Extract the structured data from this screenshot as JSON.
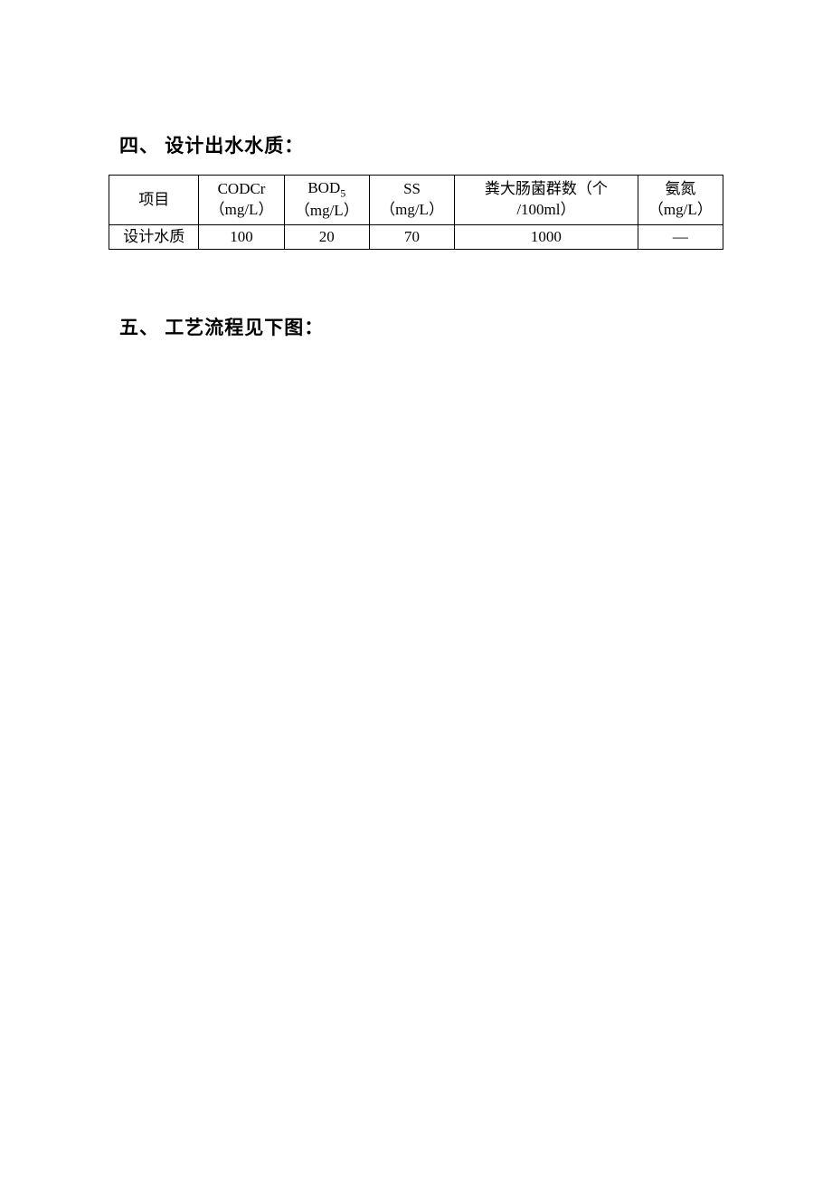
{
  "section4": {
    "heading": "四、 设计出水水质："
  },
  "section5": {
    "heading": "五、 工艺流程见下图："
  },
  "table": {
    "columns": [
      {
        "header_line1": "项目",
        "header_line2": "",
        "single_line": true
      },
      {
        "header_line1": "CODCr",
        "header_line2": "（mg/L）",
        "single_line": false
      },
      {
        "header_line1_pre": "BOD",
        "header_line1_sub": "5",
        "header_line2": "（mg/L）",
        "single_line": false,
        "has_sub": true
      },
      {
        "header_line1": "SS",
        "header_line2": "（mg/L）",
        "single_line": false
      },
      {
        "header_line1": "粪大肠菌群数（个",
        "header_line2": "/100ml）",
        "single_line": false
      },
      {
        "header_line1": "氨氮",
        "header_line2": "（mg/L）",
        "single_line": false
      }
    ],
    "row_label": "设计水质",
    "row_values": [
      "100",
      "20",
      "70",
      "1000",
      "—"
    ]
  }
}
